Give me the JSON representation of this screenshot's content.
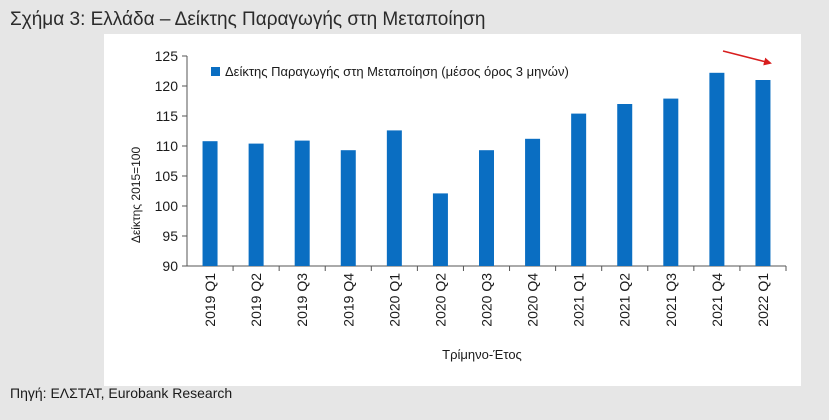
{
  "figure_title": "Σχήμα 3: Ελλάδα – Δείκτης Παραγωγής στη Μεταποίηση",
  "source": "Πηγή: ΕΛΣΤΑΤ, Eurobank Research",
  "colors": {
    "bar": "#0a6ec2",
    "arrow": "#d81e1e",
    "page_bg": "#e6e6e6",
    "panel_bg": "#ffffff"
  },
  "chart_data": {
    "type": "bar",
    "categories": [
      "2019 Q1",
      "2019 Q2",
      "2019 Q3",
      "2019 Q4",
      "2020 Q1",
      "2020 Q2",
      "2020 Q3",
      "2020 Q4",
      "2021 Q1",
      "2021 Q2",
      "2021 Q3",
      "2021 Q4",
      "2022 Q1"
    ],
    "series": [
      {
        "name": "Δείκτης Παραγωγής στη Μεταποίηση (μέσος όρος 3 μηνών)",
        "values": [
          110.8,
          110.4,
          110.9,
          109.3,
          112.6,
          102.1,
          109.3,
          111.2,
          115.4,
          117.0,
          117.9,
          122.2,
          121.0
        ]
      }
    ],
    "ylim": [
      90,
      125
    ],
    "yticks": [
      90,
      95,
      100,
      105,
      110,
      115,
      120,
      125
    ],
    "xlabel": "Τρίμηνο-Έτος",
    "ylabel": "Δείκτης 2015=100",
    "grid": false,
    "legend_position": "top",
    "annotation": "red arrow pointing down at the last bar"
  }
}
